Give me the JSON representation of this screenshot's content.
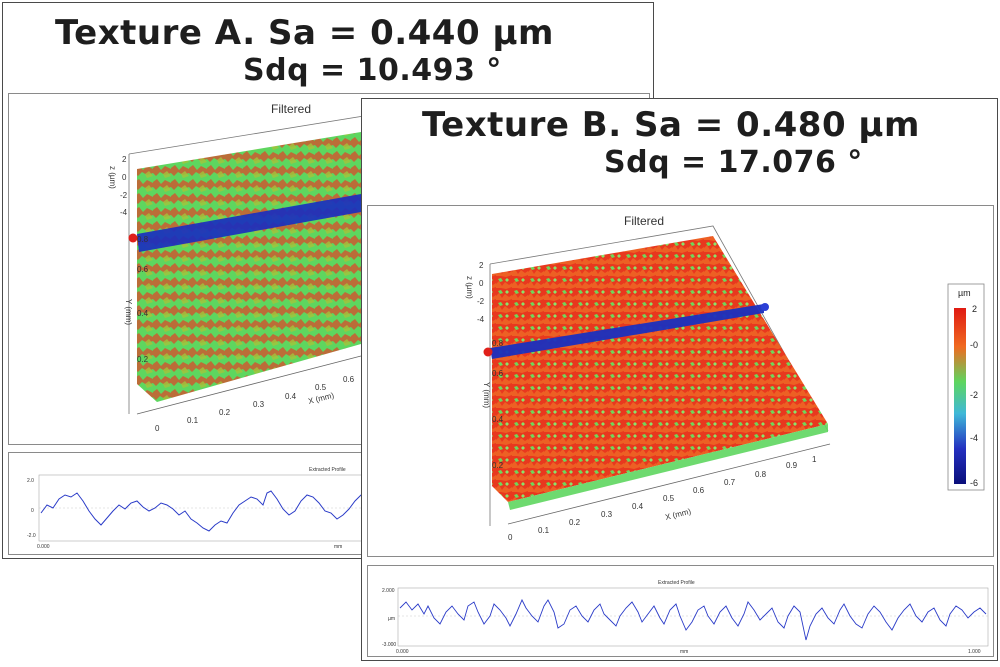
{
  "panel_a": {
    "title_line1": "Texture A. Sa = 0.440 µm",
    "title_line2": "Sdq = 10.493 °",
    "plot_title": "Filtered",
    "z_axis_label": "z (µm)",
    "y_axis_label": "Y (mm)",
    "x_axis_label": "X (mm)",
    "x_ticks": [
      "0",
      "0.1",
      "0.2",
      "0.3",
      "0.4",
      "0.5",
      "0.6"
    ],
    "y_ticks": [
      "0.2",
      "0.4",
      "0.6",
      "0.8"
    ],
    "z_ticks": [
      "2",
      "0",
      "-2",
      "-4"
    ],
    "profile_title": "Extracted Profile",
    "profile_left": "0.000",
    "profile_unit": "mm",
    "profile_y_top": "2.0",
    "profile_y_mid": "0",
    "profile_y_bot": "-2.0"
  },
  "panel_b": {
    "title_line1": "Texture B. Sa = 0.480 µm",
    "title_line2": "Sdq = 17.076 °",
    "plot_title": "Filtered",
    "z_axis_label": "z (µm)",
    "y_axis_label": "Y (mm)",
    "x_axis_label": "X (mm)",
    "x_ticks": [
      "0",
      "0.1",
      "0.2",
      "0.3",
      "0.4",
      "0.5",
      "0.6",
      "0.7",
      "0.8",
      "0.9",
      "1"
    ],
    "y_ticks": [
      "0.2",
      "0.4",
      "0.6",
      "0.8"
    ],
    "z_ticks": [
      "2",
      "0",
      "-2",
      "-4"
    ],
    "colorbar_unit": "µm",
    "colorbar_ticks": [
      "2",
      "-0",
      "-2",
      "-4",
      "-6"
    ],
    "profile_title": "Extracted Profile",
    "profile_left": "0.000",
    "profile_unit": "mm",
    "profile_right": "1.000",
    "profile_y_top": "2.000",
    "profile_y_mid": "µm",
    "profile_y_bot": "-3.000"
  },
  "colors": {
    "surface_red": "#e8341c",
    "surface_green": "#4fd15a",
    "profile_band": "#1a2fbf",
    "profile_line": "#2a3bc8",
    "marker_red": "#e0201a",
    "marker_blue": "#2b3fd6"
  }
}
